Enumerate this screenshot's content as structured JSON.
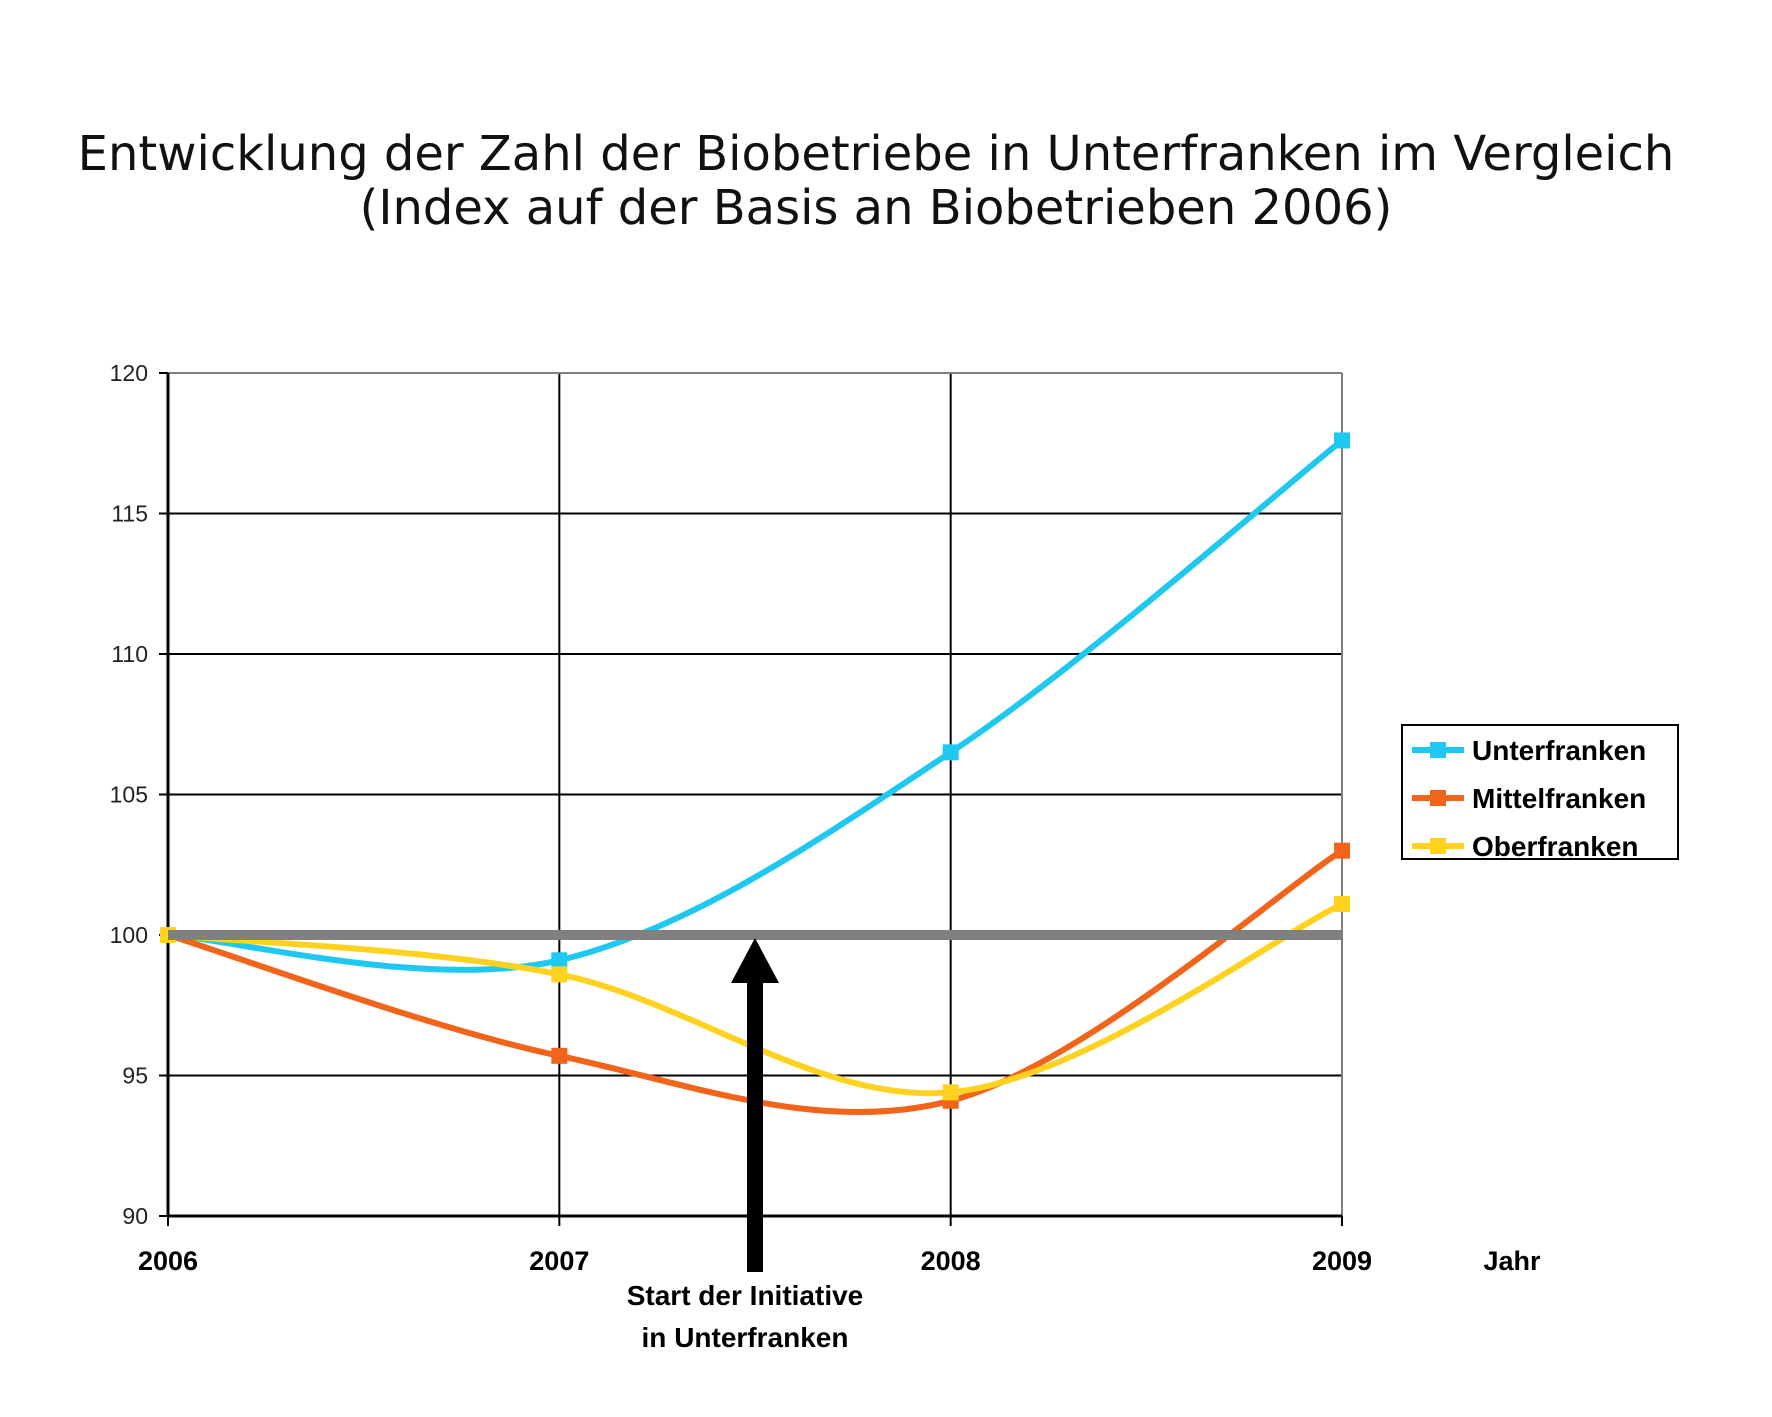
{
  "chart_data": {
    "type": "line",
    "title": "Entwicklung der Zahl der Biobetriebe in Unterfranken im Vergleich",
    "subtitle": "(Index auf der Basis an Biobetrieben 2006)",
    "xlabel": "Jahr",
    "ylabel": "",
    "x": [
      "2006",
      "2007",
      "2008",
      "2009"
    ],
    "ylim": [
      90,
      120
    ],
    "yticks": [
      90,
      95,
      100,
      105,
      110,
      115,
      120
    ],
    "grid": true,
    "legend_position": "right",
    "reference_line": {
      "y": 100,
      "color": "#808080"
    },
    "series": [
      {
        "name": "Unterfranken",
        "color": "#1ec8f0",
        "values": [
          100,
          99.1,
          106.5,
          117.6
        ]
      },
      {
        "name": "Mittelfranken",
        "color": "#f26419",
        "values": [
          100,
          95.7,
          94.1,
          103.0
        ]
      },
      {
        "name": "Oberfranken",
        "color": "#ffd21f",
        "values": [
          100,
          98.6,
          94.4,
          101.1
        ]
      }
    ],
    "annotation": {
      "line1": "Start der Initiative",
      "line2": "in Unterfranken",
      "x": 2007.5
    }
  }
}
